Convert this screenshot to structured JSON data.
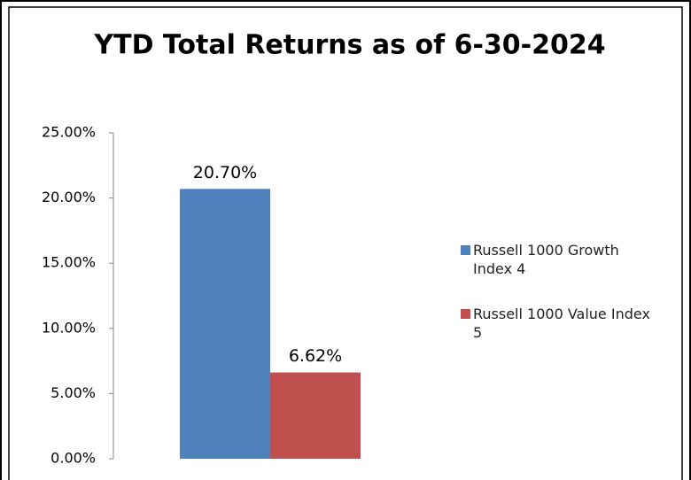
{
  "chart_data": {
    "type": "bar",
    "title": "YTD Total Returns as of 6-30-2024",
    "categories": [
      null
    ],
    "series": [
      {
        "name": "Russell 1000 Growth Index 4",
        "color": "#4f81bd",
        "values": [
          20.7
        ],
        "value_labels": [
          "20.70%"
        ]
      },
      {
        "name": "Russell 1000 Value Index 5",
        "color": "#c0504d",
        "values": [
          6.62
        ],
        "value_labels": [
          "6.62%"
        ]
      }
    ],
    "ylim": [
      0,
      25
    ],
    "yticks": [
      {
        "value": 0,
        "label": "0.00%"
      },
      {
        "value": 5,
        "label": "5.00%"
      },
      {
        "value": 10,
        "label": "10.00%"
      },
      {
        "value": 15,
        "label": "15.00%"
      },
      {
        "value": 20,
        "label": "20.00%"
      },
      {
        "value": 25,
        "label": "25.00%"
      }
    ],
    "legend": "right"
  }
}
